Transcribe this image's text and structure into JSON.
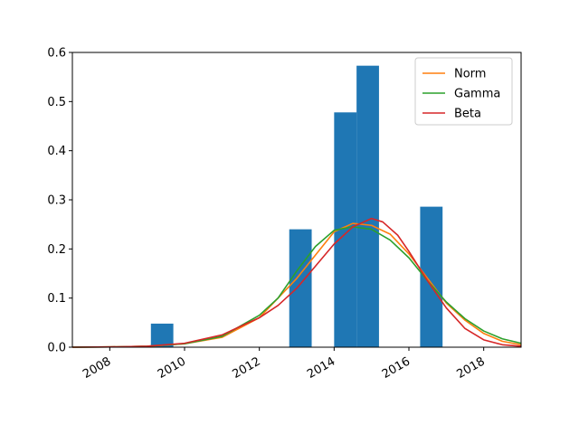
{
  "chart_data": {
    "type": "bar",
    "xlim": [
      2007.0,
      2019.0
    ],
    "ylim": [
      0.0,
      0.6
    ],
    "x_ticks": [
      2008,
      2010,
      2012,
      2014,
      2016,
      2018
    ],
    "x_tick_labels": [
      "2008",
      "2010",
      "2012",
      "2014",
      "2016",
      "2018"
    ],
    "y_ticks": [
      0.0,
      0.1,
      0.2,
      0.3,
      0.4,
      0.5,
      0.6
    ],
    "y_tick_labels": [
      "0.0",
      "0.1",
      "0.2",
      "0.3",
      "0.4",
      "0.5",
      "0.6"
    ],
    "x_tick_rotation": 30,
    "legend_position": "top-right",
    "bar_color": "#1f77b4",
    "bars": [
      {
        "start": 2009.1,
        "end": 2009.7,
        "value": 0.048
      },
      {
        "start": 2012.8,
        "end": 2013.4,
        "value": 0.24
      },
      {
        "start": 2014.0,
        "end": 2014.6,
        "value": 0.478
      },
      {
        "start": 2014.6,
        "end": 2015.2,
        "value": 0.573
      },
      {
        "start": 2016.3,
        "end": 2016.9,
        "value": 0.286
      }
    ],
    "series": [
      {
        "name": "Norm",
        "color": "#ff7f0e",
        "x": [
          2007,
          2008,
          2009,
          2010,
          2011,
          2012,
          2013,
          2014,
          2014.5,
          2015,
          2015.5,
          2016,
          2016.5,
          2017,
          2017.5,
          2018,
          2018.5,
          2019
        ],
        "y": [
          0.0,
          0.0005,
          0.002,
          0.007,
          0.02,
          0.06,
          0.14,
          0.235,
          0.252,
          0.248,
          0.23,
          0.19,
          0.14,
          0.09,
          0.055,
          0.028,
          0.012,
          0.005
        ]
      },
      {
        "name": "Gamma",
        "color": "#2ca02c",
        "x": [
          2007,
          2008,
          2009,
          2010,
          2011,
          2012,
          2012.5,
          2013,
          2013.5,
          2014,
          2014.5,
          2015,
          2015.5,
          2016,
          2016.5,
          2017,
          2017.5,
          2018,
          2018.5,
          2019
        ],
        "y": [
          0.0,
          0.0005,
          0.002,
          0.007,
          0.022,
          0.065,
          0.1,
          0.155,
          0.205,
          0.238,
          0.245,
          0.24,
          0.218,
          0.182,
          0.135,
          0.092,
          0.058,
          0.033,
          0.017,
          0.008
        ]
      },
      {
        "name": "Beta",
        "color": "#d62728",
        "x": [
          2007,
          2008,
          2009,
          2010,
          2011,
          2012,
          2012.5,
          2013,
          2013.5,
          2014,
          2014.5,
          2015,
          2015.3,
          2015.7,
          2016,
          2016.5,
          2017,
          2017.5,
          2018,
          2018.5,
          2019
        ],
        "y": [
          0.0,
          0.0005,
          0.002,
          0.008,
          0.025,
          0.06,
          0.085,
          0.12,
          0.165,
          0.21,
          0.245,
          0.262,
          0.255,
          0.228,
          0.195,
          0.135,
          0.08,
          0.038,
          0.015,
          0.005,
          0.002
        ]
      }
    ]
  }
}
